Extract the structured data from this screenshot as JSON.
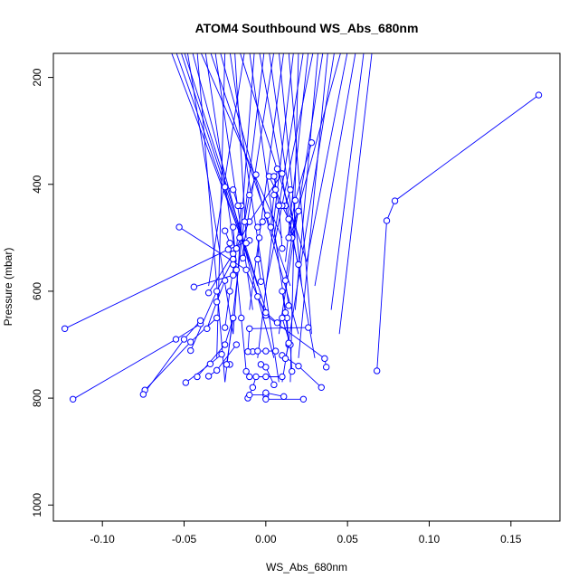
{
  "chart_data": {
    "type": "line",
    "title": "ATOM4 Southbound WS_Abs_680nm",
    "xlabel": "WS_Abs_680nm",
    "ylabel": "Pressure (mbar)",
    "xlim": [
      -0.13,
      0.18
    ],
    "ylim": [
      1030,
      155
    ],
    "y_reversed": true,
    "x_ticks": [
      -0.1,
      -0.05,
      0.0,
      0.05,
      0.1,
      0.15
    ],
    "x_tick_labels": [
      "-0.10",
      "-0.05",
      "0.00",
      "0.05",
      "0.10",
      "0.15"
    ],
    "y_ticks": [
      200,
      400,
      600,
      800,
      1000
    ],
    "y_tick_labels": [
      "200",
      "400",
      "600",
      "800",
      "1000"
    ],
    "grid": false,
    "legend": "none",
    "series_color": "#0000ff",
    "marker": "open-circle",
    "profiles": [
      {
        "points": [
          [
            0.167,
            233
          ],
          [
            0.079,
            431
          ],
          [
            0.074,
            468
          ],
          [
            0.068,
            749
          ]
        ]
      },
      {
        "points": [
          [
            -0.123,
            670
          ],
          [
            -0.023,
            522
          ],
          [
            -0.01,
            505
          ]
        ]
      },
      {
        "points": [
          [
            -0.118,
            802
          ],
          [
            -0.055,
            690
          ],
          [
            -0.04,
            661
          ]
        ]
      },
      {
        "points": [
          [
            -0.074,
            785
          ],
          [
            -0.046,
            695
          ],
          [
            -0.03,
            650
          ]
        ]
      },
      {
        "points": [
          [
            -0.075,
            793
          ],
          [
            -0.05,
            690
          ],
          [
            -0.04,
            655
          ]
        ]
      },
      {
        "points": [
          [
            -0.053,
            480
          ],
          [
            -0.012,
            560
          ],
          [
            0.0,
            645
          ],
          [
            0.036,
            726
          ],
          [
            0.037,
            742
          ]
        ]
      },
      {
        "points": [
          [
            -0.049,
            771
          ],
          [
            -0.034,
            736
          ],
          [
            -0.027,
            718
          ]
        ]
      },
      {
        "points": [
          [
            -0.044,
            592
          ],
          [
            -0.02,
            570
          ]
        ]
      },
      {
        "points": [
          [
            -0.042,
            760
          ],
          [
            -0.025,
            700
          ],
          [
            -0.02,
            650
          ]
        ]
      },
      {
        "points": [
          [
            -0.035,
            759
          ],
          [
            -0.03,
            748
          ],
          [
            -0.018,
            700
          ]
        ]
      },
      {
        "points": [
          [
            -0.035,
            603
          ],
          [
            -0.02,
            530
          ],
          [
            -0.01,
            470
          ],
          [
            0.01,
            380
          ]
        ]
      },
      {
        "points": [
          [
            -0.046,
            711
          ],
          [
            -0.03,
            600
          ],
          [
            -0.02,
            540
          ]
        ]
      },
      {
        "points": [
          [
            -0.025,
            668
          ],
          [
            -0.022,
            600
          ],
          [
            -0.018,
            520
          ],
          [
            -0.015,
            440
          ]
        ]
      },
      {
        "points": [
          [
            -0.036,
            670
          ],
          [
            -0.03,
            620
          ],
          [
            -0.025,
            580
          ]
        ]
      },
      {
        "points": [
          [
            -0.022,
            737
          ],
          [
            -0.024,
            737
          ],
          [
            -0.02,
            650
          ]
        ]
      },
      {
        "points": [
          [
            -0.012,
            750
          ],
          [
            -0.015,
            650
          ],
          [
            -0.018,
            560
          ],
          [
            -0.02,
            480
          ]
        ]
      },
      {
        "points": [
          [
            -0.011,
            800
          ],
          [
            -0.008,
            780
          ],
          [
            -0.006,
            760
          ]
        ]
      },
      {
        "points": [
          [
            -0.01,
            794
          ],
          [
            0.0,
            794
          ]
        ]
      },
      {
        "points": [
          [
            0.0,
            802
          ],
          [
            0.023,
            802
          ]
        ]
      },
      {
        "points": [
          [
            0.011,
            797
          ],
          [
            0.0,
            790
          ]
        ]
      },
      {
        "points": [
          [
            -0.01,
            760
          ],
          [
            0.0,
            760
          ],
          [
            0.01,
            760
          ]
        ]
      },
      {
        "points": [
          [
            -0.008,
            713
          ],
          [
            -0.011,
            713
          ],
          [
            -0.01,
            670
          ],
          [
            0.026,
            668
          ]
        ]
      },
      {
        "points": [
          [
            0.034,
            780
          ],
          [
            0.02,
            740
          ],
          [
            0.01,
            720
          ]
        ]
      },
      {
        "points": [
          [
            0.005,
            775
          ],
          [
            0.0,
            742
          ],
          [
            -0.003,
            737
          ]
        ]
      },
      {
        "points": [
          [
            0.012,
            726
          ],
          [
            0.014,
            700
          ],
          [
            0.013,
            650
          ]
        ]
      },
      {
        "points": [
          [
            0.016,
            750
          ],
          [
            0.015,
            700
          ],
          [
            0.01,
            650
          ]
        ]
      },
      {
        "points": [
          [
            0.006,
            712
          ],
          [
            0.0,
            712
          ],
          [
            -0.005,
            712
          ]
        ]
      },
      {
        "points": [
          [
            0.014,
            697
          ],
          [
            0.012,
            640
          ],
          [
            0.01,
            600
          ]
        ]
      },
      {
        "points": [
          [
            0.007,
            659
          ],
          [
            0.0,
            640
          ],
          [
            -0.005,
            610
          ]
        ]
      },
      {
        "points": [
          [
            0.014,
            627
          ],
          [
            0.012,
            580
          ],
          [
            0.016,
            500
          ],
          [
            0.02,
            450
          ]
        ]
      },
      {
        "points": [
          [
            -0.003,
            582
          ],
          [
            -0.005,
            540
          ],
          [
            -0.004,
            500
          ]
        ]
      },
      {
        "points": [
          [
            0.02,
            550
          ],
          [
            0.016,
            500
          ],
          [
            0.012,
            440
          ],
          [
            0.015,
            410
          ]
        ]
      },
      {
        "points": [
          [
            0.014,
            465
          ],
          [
            0.01,
            440
          ],
          [
            0.006,
            410
          ],
          [
            0.002,
            385
          ]
        ]
      },
      {
        "points": [
          [
            -0.006,
            382
          ],
          [
            -0.01,
            420
          ],
          [
            -0.013,
            470
          ]
        ]
      },
      {
        "points": [
          [
            -0.025,
            405
          ],
          [
            -0.02,
            410
          ],
          [
            -0.017,
            440
          ]
        ]
      },
      {
        "points": [
          [
            0.028,
            322
          ],
          [
            0.018,
            430
          ],
          [
            0.014,
            500
          ]
        ]
      },
      {
        "points": [
          [
            0.005,
            385
          ],
          [
            0.008,
            440
          ],
          [
            0.01,
            520
          ]
        ]
      },
      {
        "points": [
          [
            0.007,
            371
          ],
          [
            0.005,
            420
          ],
          [
            0.003,
            480
          ]
        ]
      },
      {
        "points": [
          [
            0.001,
            458
          ],
          [
            -0.002,
            470
          ],
          [
            -0.005,
            480
          ]
        ]
      },
      {
        "points": [
          [
            -0.025,
            487
          ],
          [
            -0.022,
            510
          ],
          [
            -0.02,
            550
          ]
        ]
      },
      {
        "points": [
          [
            -0.014,
            538
          ],
          [
            -0.012,
            510
          ],
          [
            -0.016,
            500
          ]
        ]
      }
    ],
    "through_top_lines": [
      [
        -0.058,
        -0.015
      ],
      [
        -0.055,
        -0.01
      ],
      [
        -0.052,
        -0.005
      ],
      [
        -0.05,
        0.0
      ],
      [
        -0.048,
        -0.02
      ],
      [
        -0.045,
        0.005
      ],
      [
        -0.042,
        -0.025
      ],
      [
        -0.04,
        0.01
      ],
      [
        -0.037,
        -0.018
      ],
      [
        -0.034,
        0.015
      ],
      [
        -0.031,
        -0.008
      ],
      [
        -0.028,
        0.02
      ],
      [
        -0.025,
        -0.03
      ],
      [
        -0.022,
        0.008
      ],
      [
        -0.019,
        -0.012
      ],
      [
        -0.016,
        0.025
      ],
      [
        -0.013,
        -0.035
      ],
      [
        -0.01,
        0.012
      ],
      [
        -0.007,
        -0.02
      ],
      [
        -0.004,
        0.03
      ],
      [
        -0.001,
        -0.025
      ],
      [
        0.002,
        0.018
      ],
      [
        0.005,
        -0.015
      ],
      [
        0.008,
        0.022
      ],
      [
        0.011,
        -0.01
      ],
      [
        0.014,
        0.028
      ],
      [
        0.017,
        -0.005
      ],
      [
        0.02,
        0.015
      ],
      [
        0.023,
        0.005
      ],
      [
        0.026,
        0.012
      ],
      [
        0.029,
        0.0
      ],
      [
        0.032,
        0.018
      ],
      [
        0.035,
        0.008
      ],
      [
        0.038,
        0.02
      ],
      [
        0.042,
        0.01
      ],
      [
        0.046,
        0.015
      ],
      [
        0.05,
        0.025
      ],
      [
        0.055,
        0.03
      ],
      [
        0.06,
        0.04
      ],
      [
        0.065,
        0.045
      ]
    ]
  }
}
